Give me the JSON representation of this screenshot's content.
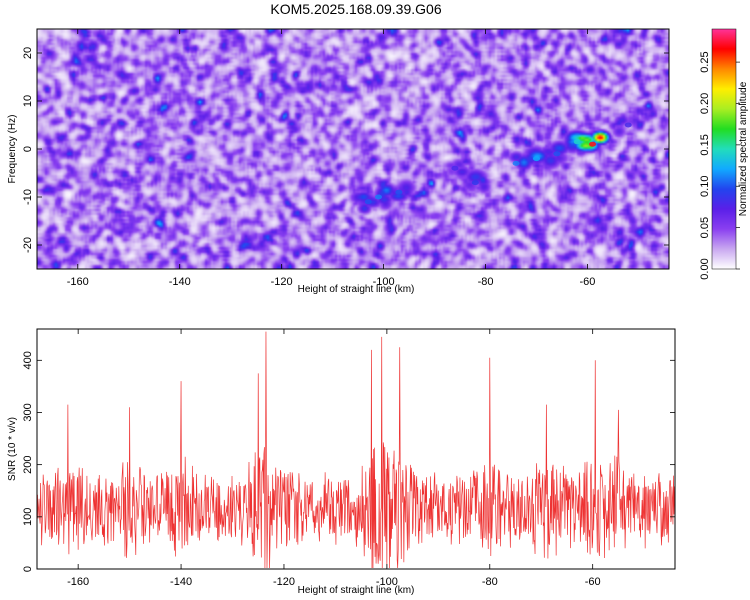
{
  "title": "KOM5.2025.168.09.39.G06",
  "colors": {
    "snr_line": "#ee3333",
    "frame": "#000000"
  },
  "chart_data": [
    {
      "type": "heatmap",
      "xlabel": "Height of straight line (km)",
      "ylabel": "Frequency (Hz)",
      "xlim": [
        -168,
        -44
      ],
      "ylim": [
        -25,
        25
      ],
      "x_ticks": [
        -160,
        -140,
        -120,
        -100,
        -80,
        -60
      ],
      "x_tick_labels": [
        "-160",
        "-140",
        "-120",
        "-100",
        "-80",
        "-60"
      ],
      "y_ticks": [
        -20,
        -10,
        0,
        10,
        20
      ],
      "y_tick_labels": [
        "-20",
        "-10",
        "0",
        "10",
        "20"
      ],
      "colorbar": {
        "label": "Normalized spectral amplitude",
        "range": [
          0,
          0.29
        ],
        "ticks": [
          0,
          0.05,
          0.1,
          0.15,
          0.2,
          0.25
        ],
        "tick_labels": [
          "0.00",
          "0.05",
          "0.10",
          "0.15",
          "0.20",
          "0.25"
        ],
        "colormap": [
          "#ffffff",
          "#c9a8f0",
          "#8a3ff0",
          "#5a1fe8",
          "#2244ee",
          "#11aaff",
          "#22ddbb",
          "#22dd22",
          "#aaee22",
          "#ffee00",
          "#ff8800",
          "#ff0000",
          "#ff3399"
        ]
      },
      "features": [
        {
          "x": -59,
          "y": 1,
          "amplitude": 0.27
        },
        {
          "x": -62,
          "y": 1.5,
          "amplitude": 0.14
        },
        {
          "x": -70,
          "y": -2,
          "amplitude": 0.12
        },
        {
          "x": -74,
          "y": -3,
          "amplitude": 0.11
        },
        {
          "x": -66,
          "y": -1,
          "amplitude": 0.1
        },
        {
          "x": -101,
          "y": -10,
          "amplitude": 0.11
        },
        {
          "x": -97,
          "y": -9,
          "amplitude": 0.1
        },
        {
          "x": -103,
          "y": -11,
          "amplitude": 0.1
        },
        {
          "x": -82,
          "y": -7,
          "amplitude": 0.09
        },
        {
          "x": -86,
          "y": -4,
          "amplitude": 0.08
        },
        {
          "x": -52,
          "y": 5,
          "amplitude": 0.08
        }
      ]
    },
    {
      "type": "line",
      "xlabel": "Height of straight line (km)",
      "ylabel": "SNR (10 * v/v)",
      "xlim": [
        -168,
        -44
      ],
      "ylim": [
        0,
        460
      ],
      "x_ticks": [
        -160,
        -140,
        -120,
        -100,
        -80,
        -60
      ],
      "x_tick_labels": [
        "-160",
        "-140",
        "-120",
        "-100",
        "-80",
        "-60"
      ],
      "y_ticks": [
        0,
        100,
        200,
        300,
        400
      ],
      "y_tick_labels": [
        "0",
        "100",
        "200",
        "300",
        "400"
      ],
      "series": [
        {
          "color": "#ee3333",
          "x_step": 0.1,
          "baseline": 115,
          "noise": 60,
          "peaks": [
            {
              "x": -123.5,
              "y": 455
            },
            {
              "x": -101,
              "y": 445
            },
            {
              "x": -97.5,
              "y": 425
            },
            {
              "x": -103,
              "y": 420
            },
            {
              "x": -80,
              "y": 405
            },
            {
              "x": -59.5,
              "y": 400
            },
            {
              "x": -125,
              "y": 375
            },
            {
              "x": -140,
              "y": 360
            },
            {
              "x": -150,
              "y": 310
            },
            {
              "x": -162,
              "y": 315
            },
            {
              "x": -69,
              "y": 315
            },
            {
              "x": -55,
              "y": 305
            }
          ]
        }
      ]
    }
  ]
}
